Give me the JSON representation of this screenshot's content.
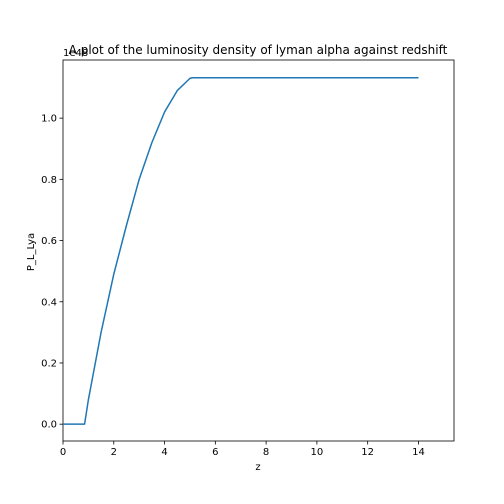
{
  "chart_data": {
    "type": "line",
    "title": "A plot of the luminosity density of lyman alpha against redshift",
    "xlabel": "z",
    "ylabel": "P_L_Lya",
    "offset_text": "1e48",
    "xlim": [
      0,
      15.4
    ],
    "ylim": [
      -0.055,
      1.19
    ],
    "x_ticks": [
      0,
      2,
      4,
      6,
      8,
      10,
      12,
      14
    ],
    "x_tick_labels": [
      "0",
      "2",
      "4",
      "6",
      "8",
      "10",
      "12",
      "14"
    ],
    "y_ticks": [
      0.0,
      0.2,
      0.4,
      0.6,
      0.8,
      1.0
    ],
    "y_tick_labels": [
      "0.0",
      "0.2",
      "0.4",
      "0.6",
      "0.8",
      "1.0"
    ],
    "grid": false,
    "legend": "none",
    "series": [
      {
        "color": "#1f77b4",
        "x": [
          0,
          0.85,
          1.0,
          1.5,
          2.0,
          2.5,
          3.0,
          3.5,
          4.0,
          4.5,
          5.0,
          5.1,
          6.0,
          8.0,
          10.0,
          12.0,
          14.0
        ],
        "y": [
          0.0,
          0.0,
          0.08,
          0.3,
          0.49,
          0.65,
          0.8,
          0.92,
          1.02,
          1.09,
          1.13,
          1.132,
          1.132,
          1.132,
          1.132,
          1.132,
          1.132
        ]
      }
    ]
  }
}
